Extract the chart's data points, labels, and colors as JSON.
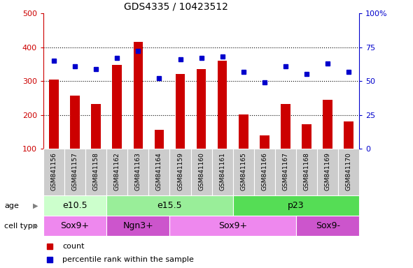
{
  "title": "GDS4335 / 10423512",
  "samples": [
    "GSM841156",
    "GSM841157",
    "GSM841158",
    "GSM841162",
    "GSM841163",
    "GSM841164",
    "GSM841159",
    "GSM841160",
    "GSM841161",
    "GSM841165",
    "GSM841166",
    "GSM841167",
    "GSM841168",
    "GSM841169",
    "GSM841170"
  ],
  "counts": [
    305,
    258,
    233,
    348,
    415,
    155,
    320,
    335,
    360,
    202,
    140,
    232,
    173,
    245,
    180
  ],
  "percentiles": [
    65,
    61,
    59,
    67,
    72,
    52,
    66,
    67,
    68,
    57,
    49,
    61,
    55,
    63,
    57
  ],
  "ylim_left": [
    100,
    500
  ],
  "ylim_right": [
    0,
    100
  ],
  "yticks_left": [
    100,
    200,
    300,
    400,
    500
  ],
  "yticks_right": [
    0,
    25,
    50,
    75,
    100
  ],
  "yticklabels_right": [
    "0",
    "25",
    "50",
    "75",
    "100%"
  ],
  "bar_color": "#cc0000",
  "dot_color": "#0000cc",
  "age_groups": [
    {
      "label": "e10.5",
      "start": 0,
      "end": 3,
      "color": "#ccffcc"
    },
    {
      "label": "e15.5",
      "start": 3,
      "end": 9,
      "color": "#99ee99"
    },
    {
      "label": "p23",
      "start": 9,
      "end": 15,
      "color": "#55dd55"
    }
  ],
  "cell_type_groups": [
    {
      "label": "Sox9+",
      "start": 0,
      "end": 3,
      "color": "#ee88ee"
    },
    {
      "label": "Ngn3+",
      "start": 3,
      "end": 6,
      "color": "#cc55cc"
    },
    {
      "label": "Sox9+",
      "start": 6,
      "end": 12,
      "color": "#ee88ee"
    },
    {
      "label": "Sox9-",
      "start": 12,
      "end": 15,
      "color": "#cc55cc"
    }
  ],
  "legend_count_label": "count",
  "legend_pct_label": "percentile rank within the sample",
  "tick_label_bg": "#cccccc",
  "plot_bg": "#ffffff",
  "title_fontsize": 10,
  "axis_label_fontsize": 9,
  "tick_fontsize": 8
}
